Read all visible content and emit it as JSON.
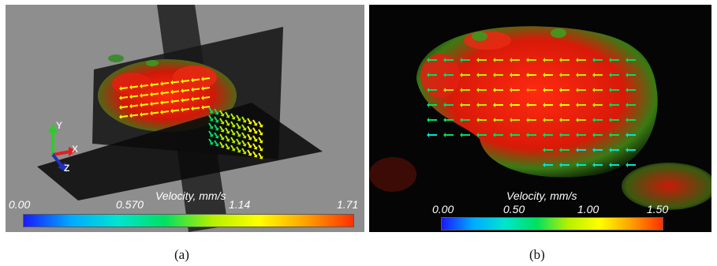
{
  "panel_a": {
    "caption": "(a)",
    "colorbar_title": "Velocity, mm/s",
    "ticks": [
      "0.00",
      "0.570",
      "1.14",
      "1.71"
    ],
    "range": [
      0.0,
      1.71
    ],
    "axes_labels": {
      "x": "X",
      "y": "Y",
      "z": "Z"
    }
  },
  "panel_b": {
    "caption": "(b)",
    "colorbar_title": "Velocity, mm/s",
    "ticks": [
      "0.00",
      "0.50",
      "1.00",
      "1.50"
    ],
    "range": [
      0.0,
      1.5
    ]
  },
  "colors": {
    "cmap": [
      "#1a1aff",
      "#00aaff",
      "#00e5d0",
      "#00e060",
      "#b5f000",
      "#ffff00",
      "#ffa000",
      "#ff3000"
    ],
    "background_a": "#8e8e8e",
    "background_b": "#050505"
  }
}
